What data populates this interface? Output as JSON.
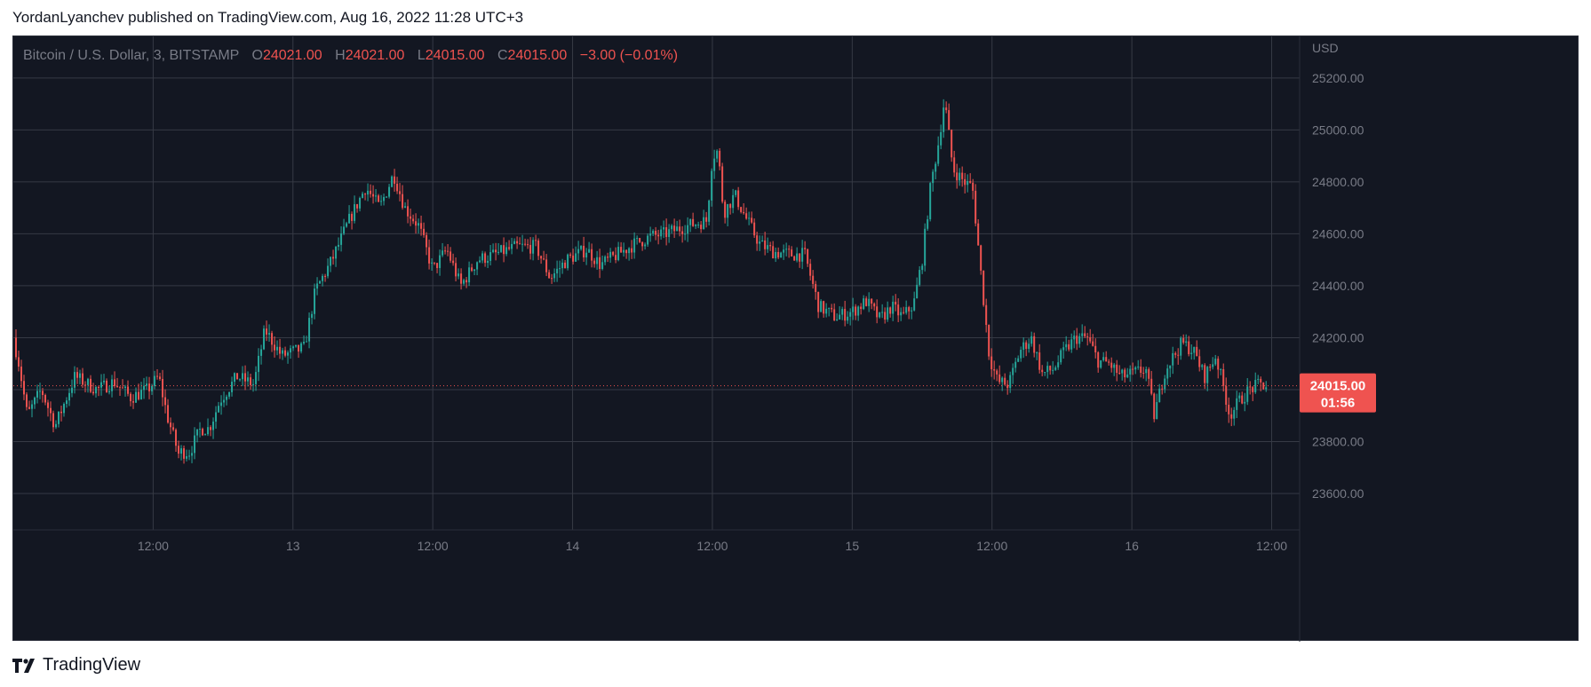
{
  "header": {
    "published_text": "YordanLyanchev published on TradingView.com, Aug 16, 2022 11:28 UTC+3"
  },
  "legend": {
    "symbol": "Bitcoin / U.S. Dollar, 3, BITSTAMP",
    "o_label": "O",
    "o_value": "24021.00",
    "h_label": "H",
    "h_value": "24021.00",
    "l_label": "L",
    "l_value": "24015.00",
    "c_label": "C",
    "c_value": "24015.00",
    "change": "−3.00 (−0.01%)"
  },
  "footer": {
    "brand": "TradingView"
  },
  "colors": {
    "up": "#26a69a",
    "down": "#ef5350",
    "background": "#131722",
    "grid": "#363a45",
    "text": "#787b86"
  },
  "chart_data": {
    "type": "candlestick",
    "currency_label": "USD",
    "last_price_label": "24015.00",
    "countdown_label": "01:56",
    "last_price": 24015,
    "ylim": [
      23460,
      25360
    ],
    "y_ticks": [
      "25200.00",
      "25000.00",
      "24800.00",
      "24600.00",
      "24400.00",
      "24200.00",
      "24000.00",
      "23800.00",
      "23600.00"
    ],
    "xlim": [
      0,
      4.6
    ],
    "x_ticks": [
      {
        "t": 0.5,
        "label": "12:00"
      },
      {
        "t": 1.0,
        "label": "13"
      },
      {
        "t": 1.5,
        "label": "12:00"
      },
      {
        "t": 2.0,
        "label": "14"
      },
      {
        "t": 2.5,
        "label": "12:00"
      },
      {
        "t": 3.0,
        "label": "15"
      },
      {
        "t": 3.5,
        "label": "12:00"
      },
      {
        "t": 4.0,
        "label": "16"
      },
      {
        "t": 4.5,
        "label": "12:00"
      }
    ],
    "price_path": [
      [
        0.0,
        24200
      ],
      [
        0.02,
        24100
      ],
      [
        0.05,
        23900
      ],
      [
        0.1,
        24000
      ],
      [
        0.15,
        23860
      ],
      [
        0.22,
        24050
      ],
      [
        0.3,
        24000
      ],
      [
        0.36,
        24030
      ],
      [
        0.42,
        23970
      ],
      [
        0.48,
        24000
      ],
      [
        0.52,
        24050
      ],
      [
        0.55,
        23900
      ],
      [
        0.6,
        23720
      ],
      [
        0.58,
        23760
      ],
      [
        0.63,
        23760
      ],
      [
        0.67,
        23850
      ],
      [
        0.7,
        23850
      ],
      [
        0.74,
        23960
      ],
      [
        0.8,
        24050
      ],
      [
        0.86,
        24020
      ],
      [
        0.9,
        24230
      ],
      [
        0.96,
        24130
      ],
      [
        1.04,
        24160
      ],
      [
        1.08,
        24380
      ],
      [
        1.14,
        24500
      ],
      [
        1.2,
        24650
      ],
      [
        1.26,
        24780
      ],
      [
        1.31,
        24700
      ],
      [
        1.36,
        24830
      ],
      [
        1.4,
        24700
      ],
      [
        1.45,
        24630
      ],
      [
        1.5,
        24460
      ],
      [
        1.55,
        24540
      ],
      [
        1.6,
        24400
      ],
      [
        1.66,
        24500
      ],
      [
        1.72,
        24520
      ],
      [
        1.8,
        24550
      ],
      [
        1.87,
        24550
      ],
      [
        1.92,
        24430
      ],
      [
        1.98,
        24500
      ],
      [
        2.05,
        24540
      ],
      [
        2.1,
        24480
      ],
      [
        2.16,
        24520
      ],
      [
        2.22,
        24560
      ],
      [
        2.28,
        24590
      ],
      [
        2.33,
        24600
      ],
      [
        2.38,
        24620
      ],
      [
        2.44,
        24640
      ],
      [
        2.48,
        24650
      ],
      [
        2.5,
        24900
      ],
      [
        2.52,
        24920
      ],
      [
        2.54,
        24680
      ],
      [
        2.58,
        24750
      ],
      [
        2.62,
        24660
      ],
      [
        2.67,
        24560
      ],
      [
        2.72,
        24530
      ],
      [
        2.78,
        24520
      ],
      [
        2.83,
        24520
      ],
      [
        2.88,
        24320
      ],
      [
        2.94,
        24280
      ],
      [
        3.0,
        24300
      ],
      [
        3.05,
        24340
      ],
      [
        3.1,
        24270
      ],
      [
        3.14,
        24320
      ],
      [
        3.18,
        24280
      ],
      [
        3.22,
        24330
      ],
      [
        3.25,
        24500
      ],
      [
        3.28,
        24780
      ],
      [
        3.31,
        24960
      ],
      [
        3.33,
        25120
      ],
      [
        3.36,
        24850
      ],
      [
        3.4,
        24800
      ],
      [
        3.43,
        24780
      ],
      [
        3.46,
        24450
      ],
      [
        3.49,
        24130
      ],
      [
        3.52,
        24030
      ],
      [
        3.56,
        24020
      ],
      [
        3.6,
        24150
      ],
      [
        3.64,
        24200
      ],
      [
        3.68,
        24060
      ],
      [
        3.72,
        24080
      ],
      [
        3.76,
        24150
      ],
      [
        3.8,
        24200
      ],
      [
        3.84,
        24200
      ],
      [
        3.88,
        24110
      ],
      [
        3.92,
        24100
      ],
      [
        3.96,
        24050
      ],
      [
        4.0,
        24060
      ],
      [
        4.05,
        24080
      ],
      [
        4.08,
        23900
      ],
      [
        4.12,
        24080
      ],
      [
        4.18,
        24180
      ],
      [
        4.22,
        24150
      ],
      [
        4.26,
        24050
      ],
      [
        4.3,
        24130
      ],
      [
        4.33,
        24000
      ],
      [
        4.35,
        23900
      ],
      [
        4.38,
        23950
      ],
      [
        4.42,
        24000
      ],
      [
        4.46,
        24020
      ],
      [
        4.48,
        24015
      ]
    ]
  }
}
